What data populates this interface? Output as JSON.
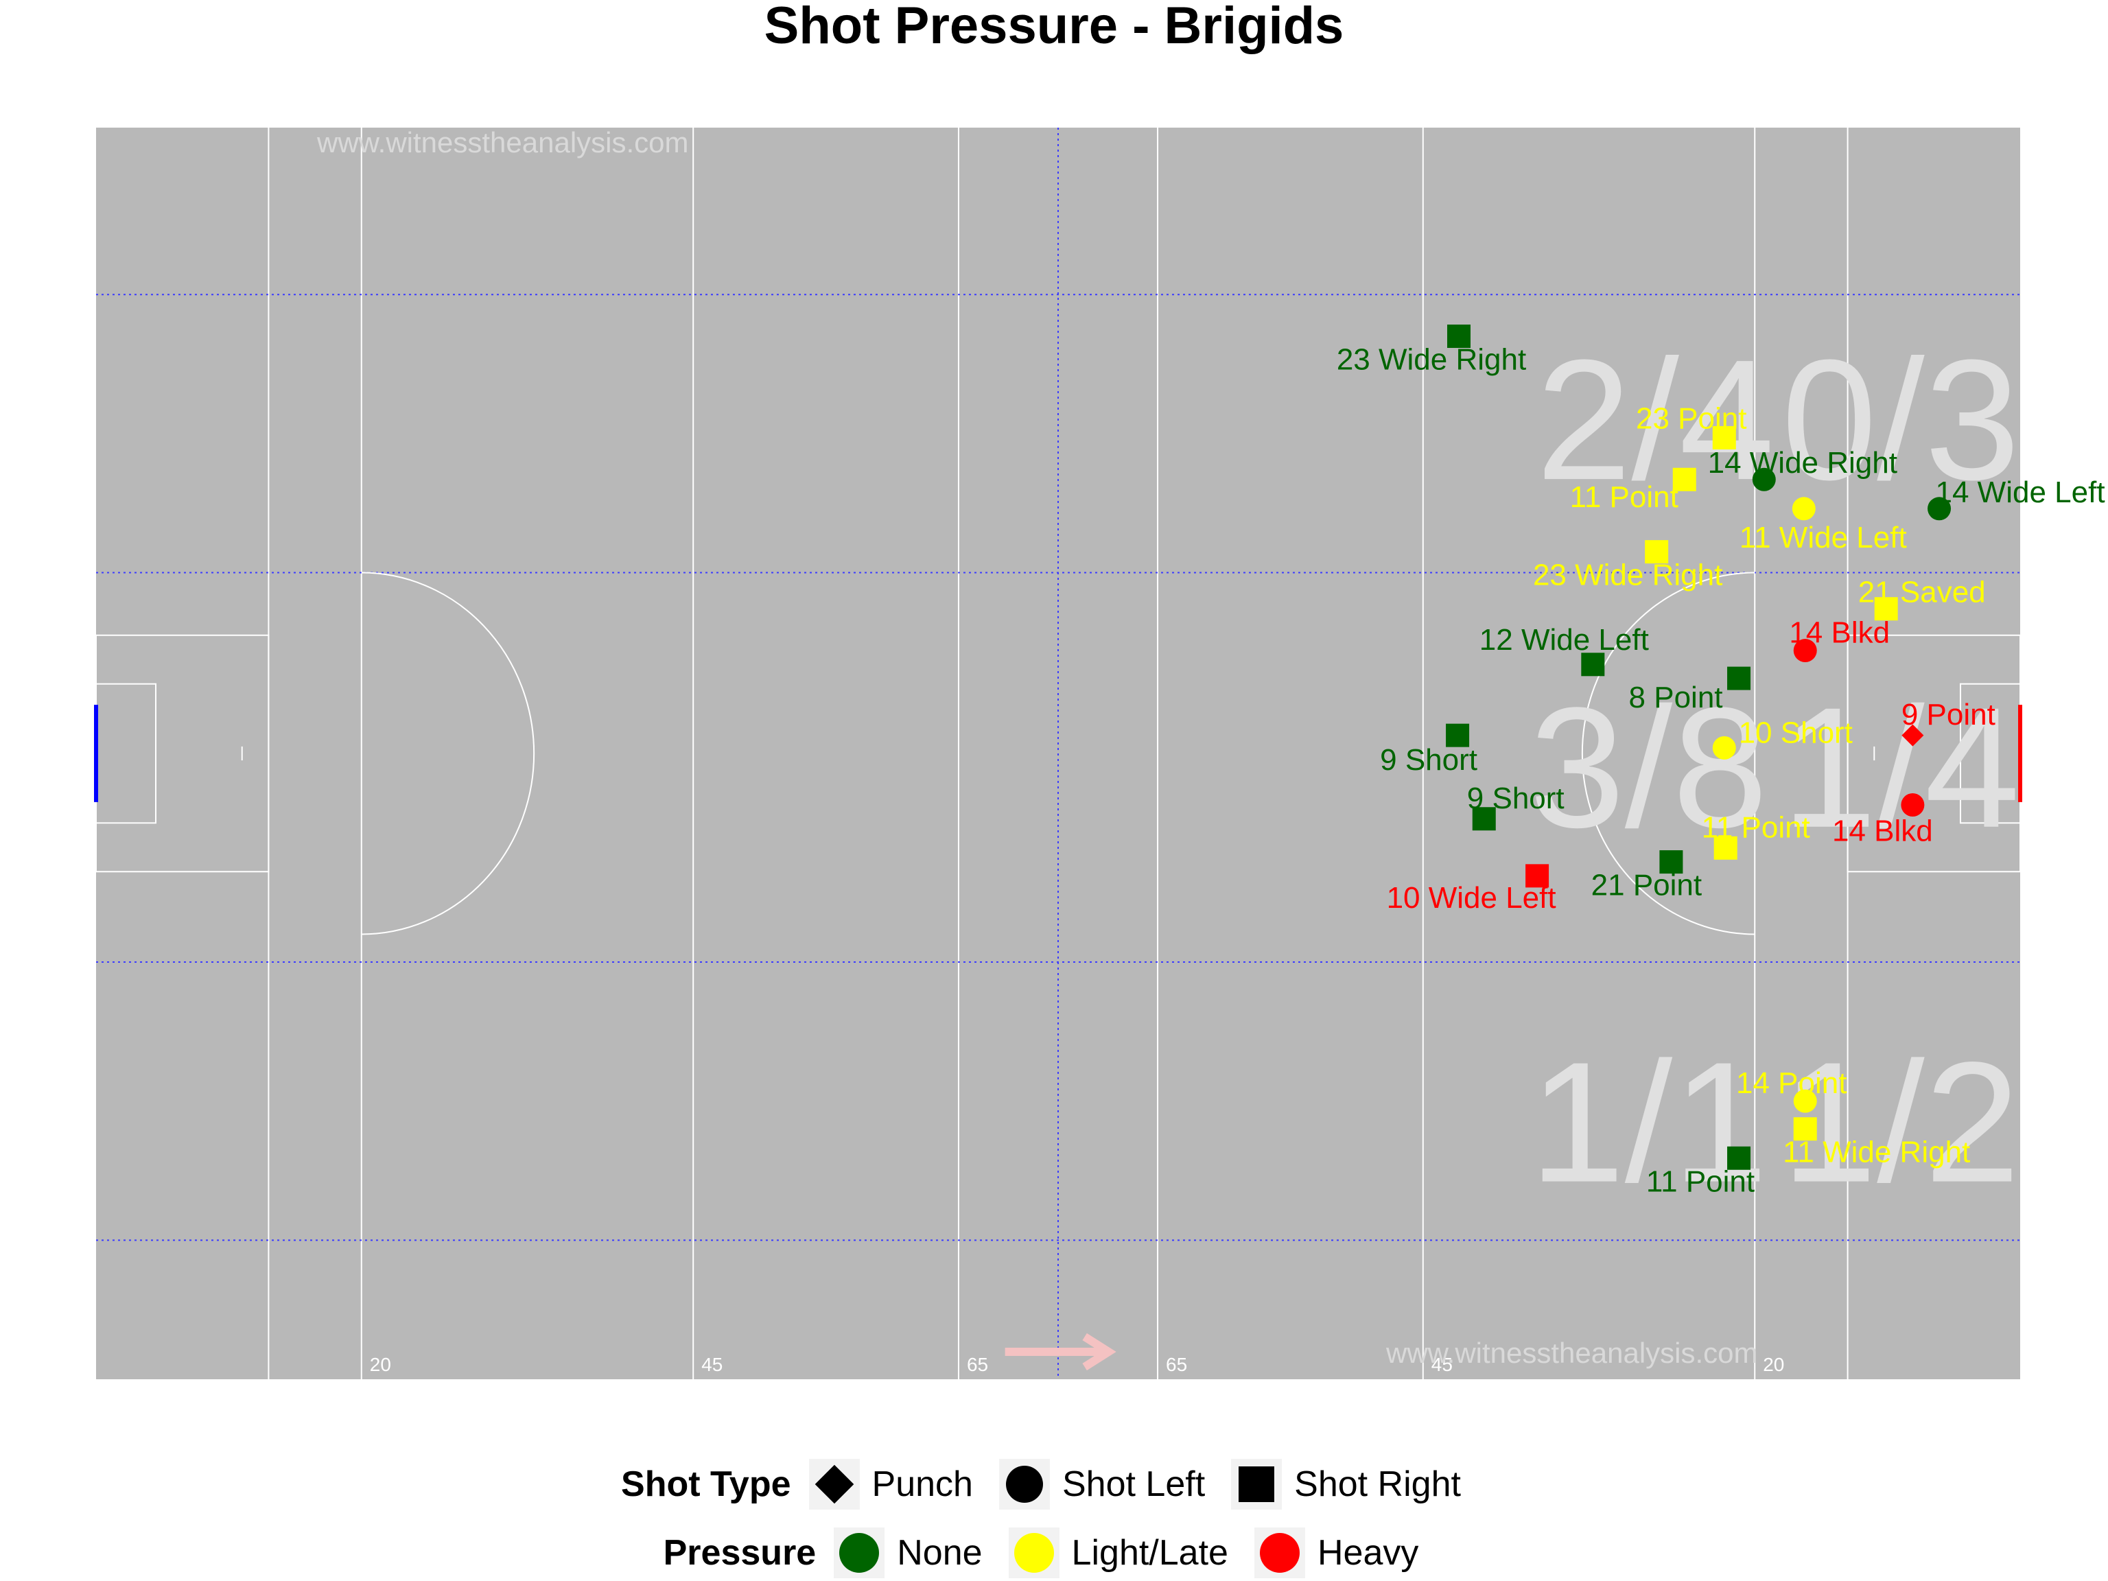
{
  "title": "Shot Pressure - Brigids",
  "watermarks": [
    "www.witnesstheanalysis.com",
    "www.witnesstheanalysis.com"
  ],
  "chart_data": {
    "type": "scatter",
    "title": "Shot Pressure - Brigids",
    "xlim": [
      0,
      145
    ],
    "ylim": [
      0,
      90
    ],
    "colors": {
      "None": "#006400",
      "Light/Late": "#ffff00",
      "Heavy": "#ff0000"
    },
    "pitch_marks": {
      "line_labels": [
        "20",
        "45",
        "65",
        "65",
        "45",
        "20"
      ],
      "line_x": [
        20,
        45,
        65,
        80,
        100,
        125
      ],
      "zone_lines_y": [
        12,
        32,
        60,
        80
      ],
      "center_line_x": 72.5,
      "attack_direction": "right"
    },
    "zone_scores": [
      {
        "text": "2/4",
        "x": 117.5,
        "y": 21
      },
      {
        "text": "0/3",
        "x": 136,
        "y": 21
      },
      {
        "text": "3/8",
        "x": 117,
        "y": 46
      },
      {
        "text": "1/4",
        "x": 136,
        "y": 46
      },
      {
        "text": "1/1",
        "x": 117,
        "y": 71.5
      },
      {
        "text": "1/2",
        "x": 136,
        "y": 71.5
      }
    ],
    "shots": [
      {
        "player": "23",
        "outcome": "Wide Right",
        "type": "Shot Right",
        "pressure": "None",
        "x": 102.7,
        "y": 15
      },
      {
        "player": "23",
        "outcome": "Point",
        "type": "Shot Right",
        "pressure": "Light/Late",
        "x": 122.7,
        "y": 22.3
      },
      {
        "player": "14",
        "outcome": "Wide Right",
        "type": "Shot Left",
        "pressure": "None",
        "x": 125.7,
        "y": 25.3
      },
      {
        "player": "11",
        "outcome": "Point",
        "type": "Shot Right",
        "pressure": "Light/Late",
        "x": 119.7,
        "y": 25.3
      },
      {
        "player": "11",
        "outcome": "Wide Left",
        "type": "Shot Left",
        "pressure": "Light/Late",
        "x": 128.7,
        "y": 27.4
      },
      {
        "player": "14",
        "outcome": "Wide Left",
        "type": "Shot Left",
        "pressure": "None",
        "x": 138.9,
        "y": 27.4
      },
      {
        "player": "23",
        "outcome": "Wide Right",
        "type": "Shot Right",
        "pressure": "Light/Late",
        "x": 117.6,
        "y": 30.5
      },
      {
        "player": "21",
        "outcome": "Saved",
        "type": "Shot Right",
        "pressure": "Light/Late",
        "x": 134.9,
        "y": 34.6
      },
      {
        "player": "14",
        "outcome": "Blkd",
        "type": "Shot Left",
        "pressure": "Heavy",
        "x": 128.8,
        "y": 37.6
      },
      {
        "player": "12",
        "outcome": "Wide Left",
        "type": "Shot Right",
        "pressure": "None",
        "x": 112.8,
        "y": 38.6
      },
      {
        "player": "8",
        "outcome": "Point",
        "type": "Shot Right",
        "pressure": "None",
        "x": 123.8,
        "y": 39.6
      },
      {
        "player": "9",
        "outcome": "Short",
        "type": "Shot Right",
        "pressure": "None",
        "x": 102.6,
        "y": 43.7
      },
      {
        "player": "9",
        "outcome": "Point",
        "type": "Punch",
        "pressure": "Heavy",
        "x": 136.9,
        "y": 43.7
      },
      {
        "player": "10",
        "outcome": "Short",
        "type": "Shot Left",
        "pressure": "Light/Late",
        "x": 122.7,
        "y": 44.6
      },
      {
        "player": "14",
        "outcome": "Blkd",
        "type": "Shot Left",
        "pressure": "Heavy",
        "x": 136.9,
        "y": 48.7
      },
      {
        "player": "9",
        "outcome": "Short",
        "type": "Shot Right",
        "pressure": "None",
        "x": 104.6,
        "y": 49.7
      },
      {
        "player": "11",
        "outcome": "Point",
        "type": "Shot Right",
        "pressure": "Light/Late",
        "x": 122.8,
        "y": 51.8
      },
      {
        "player": "21",
        "outcome": "Point",
        "type": "Shot Right",
        "pressure": "None",
        "x": 118.7,
        "y": 52.8
      },
      {
        "player": "10",
        "outcome": "Wide Left",
        "type": "Shot Right",
        "pressure": "Heavy",
        "x": 108.6,
        "y": 53.8
      },
      {
        "player": "14",
        "outcome": "Point",
        "type": "Shot Left",
        "pressure": "Light/Late",
        "x": 128.8,
        "y": 70.0
      },
      {
        "player": "11",
        "outcome": "Wide Right",
        "type": "Shot Right",
        "pressure": "Light/Late",
        "x": 128.8,
        "y": 72.0
      },
      {
        "player": "11",
        "outcome": "Point",
        "type": "Shot Right",
        "pressure": "None",
        "x": 123.8,
        "y": 74.1
      }
    ]
  },
  "legend": {
    "shot_type": {
      "title": "Shot Type",
      "items": [
        "Punch",
        "Shot Left",
        "Shot Right"
      ]
    },
    "pressure": {
      "title": "Pressure",
      "items": [
        {
          "label": "None",
          "color": "#006400"
        },
        {
          "label": "Light/Late",
          "color": "#ffff00"
        },
        {
          "label": "Heavy",
          "color": "#ff0000"
        }
      ]
    }
  }
}
